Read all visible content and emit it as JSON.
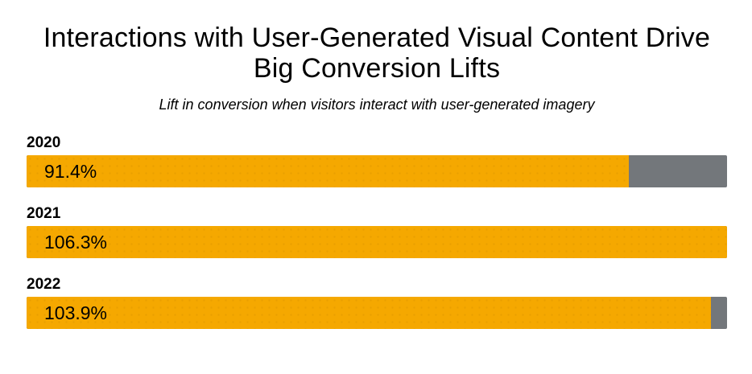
{
  "title_lines": [
    "Interactions with User-Generated Visual Content Drive",
    "Big Conversion Lifts"
  ],
  "subtitle": "Lift in conversion when visitors interact with user-generated imagery",
  "colors": {
    "bar_fill": "#F5A800",
    "bar_track": "#73777B",
    "text": "#000000",
    "background": "#FFFFFF"
  },
  "chart_data": {
    "type": "bar",
    "orientation": "horizontal",
    "title": "Interactions with User-Generated Visual Content Drive Big Conversion Lifts",
    "subtitle": "Lift in conversion when visitors interact with user-generated imagery",
    "categories": [
      "2020",
      "2021",
      "2022"
    ],
    "values": [
      91.4,
      106.3,
      103.9
    ],
    "value_labels": [
      "91.4%",
      "106.3%",
      "103.9%"
    ],
    "xlim": [
      0,
      106.3
    ],
    "grid": false,
    "legend": false,
    "value_label_position": "inside-left",
    "category_label_position": "above-bar"
  }
}
